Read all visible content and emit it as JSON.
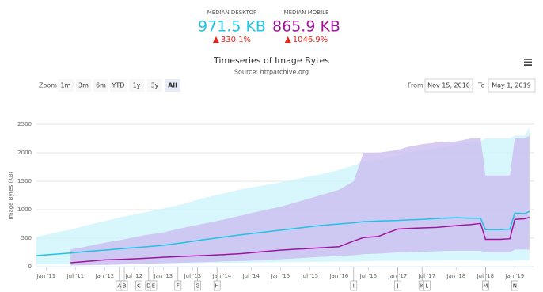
{
  "summary": [
    {
      "label": "MEDIAN DESKTOP",
      "value": "971.5 KB",
      "change": "330.1%",
      "color": "#1ec3e6"
    },
    {
      "label": "MEDIAN MOBILE",
      "value": "865.9 KB",
      "change": "1046.9%",
      "color": "#a0149c"
    }
  ],
  "controls": {
    "zoom_label": "Zoom",
    "buttons": [
      "1m",
      "3m",
      "6m",
      "YTD",
      "1y",
      "3y",
      "All"
    ],
    "selected": "All",
    "from_label": "From",
    "from": "Nov 15, 2010",
    "to_label": "To",
    "to": "May 1, 2019"
  },
  "chart_data": {
    "type": "line",
    "title": "Timeseries of Image Bytes",
    "subtitle": "Source: httparchive.org",
    "y_label": "Image Bytes (KB)",
    "grid": true,
    "x": [
      "2010-11",
      "2011-03",
      "2011-06",
      "2011-09",
      "2012-01",
      "2012-05",
      "2012-09",
      "2013-01",
      "2013-05",
      "2013-09",
      "2014-01",
      "2014-05",
      "2014-09",
      "2015-01",
      "2015-05",
      "2015-09",
      "2016-01",
      "2016-04",
      "2016-06",
      "2016-09",
      "2017-01",
      "2017-03",
      "2017-06",
      "2017-09",
      "2018-01",
      "2018-04",
      "2018-06",
      "2018-07",
      "2018-10",
      "2018-12",
      "2019-01",
      "2019-03",
      "2019-04"
    ],
    "xlim": [
      "2010-11",
      "2019-05"
    ],
    "xticks": [
      {
        "value": "2011-01",
        "label": "Jan '11"
      },
      {
        "value": "2011-07",
        "label": "Jul '11"
      },
      {
        "value": "2012-01",
        "label": "Jan '12"
      },
      {
        "value": "2012-07",
        "label": "Jul '12"
      },
      {
        "value": "2013-01",
        "label": "Jan '13"
      },
      {
        "value": "2013-07",
        "label": "Jul '13"
      },
      {
        "value": "2014-01",
        "label": "Jan '14"
      },
      {
        "value": "2014-07",
        "label": "Jul '14"
      },
      {
        "value": "2015-01",
        "label": "Jan '15"
      },
      {
        "value": "2015-07",
        "label": "Jul '15"
      },
      {
        "value": "2016-01",
        "label": "Jan '16"
      },
      {
        "value": "2016-07",
        "label": "Jul '16"
      },
      {
        "value": "2017-01",
        "label": "Jan '17"
      },
      {
        "value": "2017-07",
        "label": "Jul '17"
      },
      {
        "value": "2018-01",
        "label": "Jan '18"
      },
      {
        "value": "2018-07",
        "label": "Jul '18"
      },
      {
        "value": "2019-01",
        "label": "Jan '19"
      }
    ],
    "ylim": [
      0,
      2500
    ],
    "yticks": [
      0,
      500,
      1000,
      1500,
      2000,
      2500
    ],
    "bands": [
      {
        "color": "#cbf4fc",
        "low": [
          40,
          40,
          45,
          50,
          50,
          55,
          55,
          60,
          60,
          65,
          70,
          70,
          75,
          80,
          80,
          85,
          90,
          90,
          95,
          100,
          100,
          100,
          105,
          110,
          110,
          110,
          110,
          100,
          100,
          100,
          110,
          110,
          110
        ],
        "high": [
          520,
          600,
          650,
          720,
          800,
          880,
          950,
          1020,
          1100,
          1200,
          1280,
          1360,
          1420,
          1480,
          1550,
          1620,
          1700,
          1780,
          1850,
          1880,
          1950,
          2000,
          2050,
          2080,
          2150,
          2200,
          2200,
          2250,
          2250,
          2250,
          2300,
          2300,
          2450
        ]
      },
      {
        "color": "#c9b9ef",
        "low": [
          null,
          null,
          20,
          25,
          30,
          40,
          50,
          60,
          70,
          80,
          90,
          100,
          110,
          130,
          150,
          170,
          190,
          200,
          220,
          230,
          250,
          250,
          260,
          270,
          280,
          280,
          280,
          250,
          250,
          250,
          300,
          300,
          300
        ],
        "high": [
          null,
          null,
          300,
          350,
          420,
          480,
          550,
          600,
          680,
          750,
          820,
          900,
          980,
          1050,
          1150,
          1250,
          1350,
          1500,
          2000,
          2000,
          2050,
          2100,
          2150,
          2180,
          2200,
          2250,
          2250,
          1600,
          1600,
          1600,
          2250,
          2250,
          2300
        ]
      }
    ],
    "series": [
      {
        "color": "#1ec3e6",
        "values": [
          195,
          220,
          240,
          265,
          290,
          320,
          345,
          375,
          420,
          470,
          515,
          560,
          600,
          640,
          680,
          720,
          750,
          770,
          790,
          800,
          810,
          820,
          830,
          845,
          860,
          850,
          850,
          650,
          650,
          660,
          940,
          930,
          970
        ]
      },
      {
        "color": "#a0149c",
        "values": [
          null,
          null,
          70,
          90,
          120,
          130,
          145,
          165,
          180,
          195,
          210,
          230,
          260,
          290,
          310,
          330,
          350,
          450,
          510,
          530,
          660,
          670,
          680,
          690,
          720,
          740,
          760,
          480,
          480,
          490,
          830,
          840,
          866
        ]
      }
    ],
    "annotations": [
      {
        "x": "2012-04",
        "label": "A"
      },
      {
        "x": "2012-05",
        "label": "B"
      },
      {
        "x": "2012-08",
        "label": "C"
      },
      {
        "x": "2012-10",
        "label": "D"
      },
      {
        "x": "2012-11",
        "label": "E"
      },
      {
        "x": "2013-04",
        "label": "F"
      },
      {
        "x": "2013-08",
        "label": "G"
      },
      {
        "x": "2013-12",
        "label": "H"
      },
      {
        "x": "2016-04",
        "label": "I"
      },
      {
        "x": "2017-01",
        "label": "J"
      },
      {
        "x": "2017-06",
        "label": "K"
      },
      {
        "x": "2017-07",
        "label": "L"
      },
      {
        "x": "2018-07",
        "label": "M"
      },
      {
        "x": "2019-01",
        "label": "N"
      }
    ]
  }
}
